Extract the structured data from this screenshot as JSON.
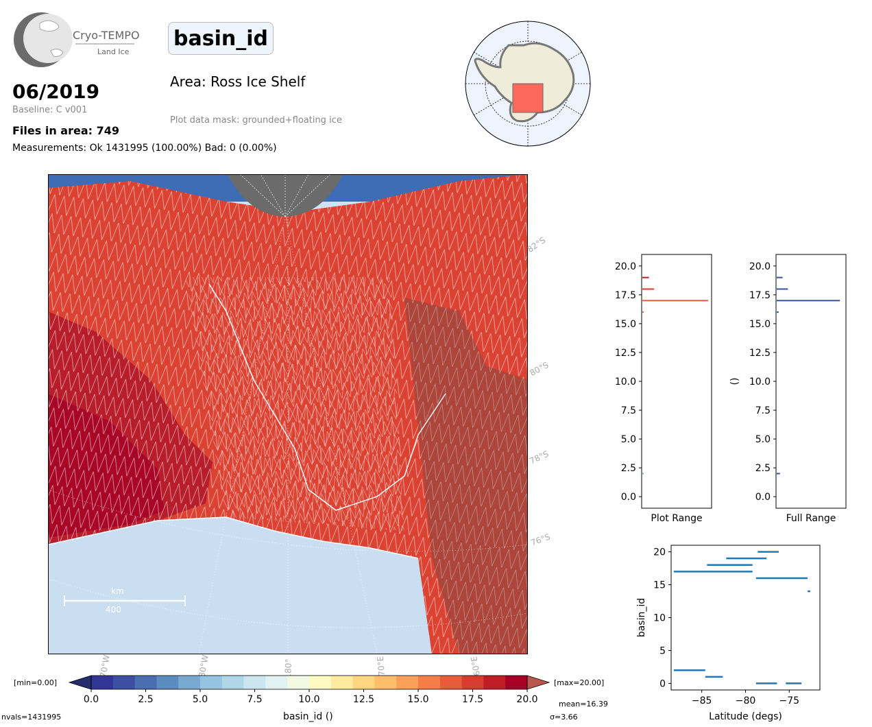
{
  "logo": {
    "name": "Cryo-TEMPO",
    "sub": "Land Ice"
  },
  "parameter": "basin_id",
  "date": "06/2019",
  "baseline": "Baseline: C v001",
  "files_in_area": "Files in area: 749",
  "measurements": "Measurements: Ok 1431995 (100.00%) Bad: 0 (0.00%)",
  "area": "Area: Ross Ice Shelf",
  "mask": "Plot data mask: grounded+floating ice",
  "map": {
    "lat_labels": [
      "82°S",
      "80°S",
      "78°S",
      "76°S"
    ],
    "lon_labels": [
      "170°W",
      "180°W",
      "180°",
      "170°E",
      "160°E"
    ],
    "scale_unit": "km",
    "scale_value": "400"
  },
  "colorbar": {
    "min_label": "[min=0.00]",
    "max_label": "[max=20.00]",
    "ticks": [
      "0.0",
      "2.5",
      "5.0",
      "7.5",
      "10.0",
      "12.5",
      "15.0",
      "17.5",
      "20.0"
    ],
    "label": "basin_id ()",
    "nvals": "nvals=1431995",
    "mean": "mean=16.39",
    "sigma": "σ=3.66",
    "colors": [
      "#313695",
      "#3c4fa0",
      "#4a6fb0",
      "#5b8cc0",
      "#78a9d1",
      "#94c4df",
      "#b0d7e8",
      "#cbe6f0",
      "#e2f2f3",
      "#f3f9e2",
      "#fefbc2",
      "#feeba0",
      "#fed583",
      "#fdbd6a",
      "#fba05a",
      "#f57d4a",
      "#e75d3c",
      "#d63d2e",
      "#c01e27",
      "#a50026"
    ],
    "under_color": "#262d6e",
    "over_color": "#b8574e"
  },
  "chart_data": [
    {
      "type": "bar",
      "title": "",
      "xlabel": "Plot Range",
      "ylabel": "",
      "ylim": [
        -1,
        21
      ],
      "y_ticks": [
        "0.0",
        "2.5",
        "5.0",
        "7.5",
        "10.0",
        "12.5",
        "15.0",
        "17.5",
        "20.0"
      ],
      "bins": [
        2,
        16,
        17,
        18,
        19
      ],
      "relative_counts": [
        0.02,
        0.02,
        1.0,
        0.18,
        0.1
      ],
      "colors": [
        "#78a9d1",
        "#e75d3c",
        "#e75d3c",
        "#d63d2e",
        "#c01e27"
      ]
    },
    {
      "type": "bar",
      "title": "",
      "xlabel": "Full Range",
      "ylabel": "()",
      "ylim": [
        -1,
        21
      ],
      "y_ticks": [
        "0.0",
        "2.5",
        "5.0",
        "7.5",
        "10.0",
        "12.5",
        "15.0",
        "17.5",
        "20.0"
      ],
      "bins": [
        2,
        16,
        17,
        18,
        19
      ],
      "relative_counts": [
        0.05,
        0.03,
        0.96,
        0.17,
        0.09
      ],
      "colors": [
        "#3c4fa0",
        "#3c4fa0",
        "#3c4fa0",
        "#3c4fa0",
        "#3c4fa0"
      ]
    },
    {
      "type": "scatter",
      "title": "",
      "xlabel": "Latitude (degs)",
      "ylabel": "basin_id",
      "xlim": [
        -88.5,
        -71.5
      ],
      "ylim": [
        -1,
        21
      ],
      "x_ticks": [
        -85,
        -80,
        -75
      ],
      "y_ticks": [
        0,
        5,
        10,
        15,
        20
      ],
      "segments": [
        {
          "y": 2,
          "x0": -88.2,
          "x1": -84.6
        },
        {
          "y": 1,
          "x0": -84.6,
          "x1": -82.6
        },
        {
          "y": 0,
          "x0": -78.8,
          "x1": -76.4
        },
        {
          "y": 0,
          "x0": -75.4,
          "x1": -73.6
        },
        {
          "y": 14,
          "x0": -72.9,
          "x1": -72.6
        },
        {
          "y": 16,
          "x0": -78.8,
          "x1": -72.9
        },
        {
          "y": 17,
          "x0": -88.2,
          "x1": -79.2
        },
        {
          "y": 18,
          "x0": -84.4,
          "x1": -79.2
        },
        {
          "y": 19,
          "x0": -82.2,
          "x1": -77.6
        },
        {
          "y": 20,
          "x0": -78.6,
          "x1": -76.2
        }
      ],
      "color": "#1f77b4"
    }
  ]
}
